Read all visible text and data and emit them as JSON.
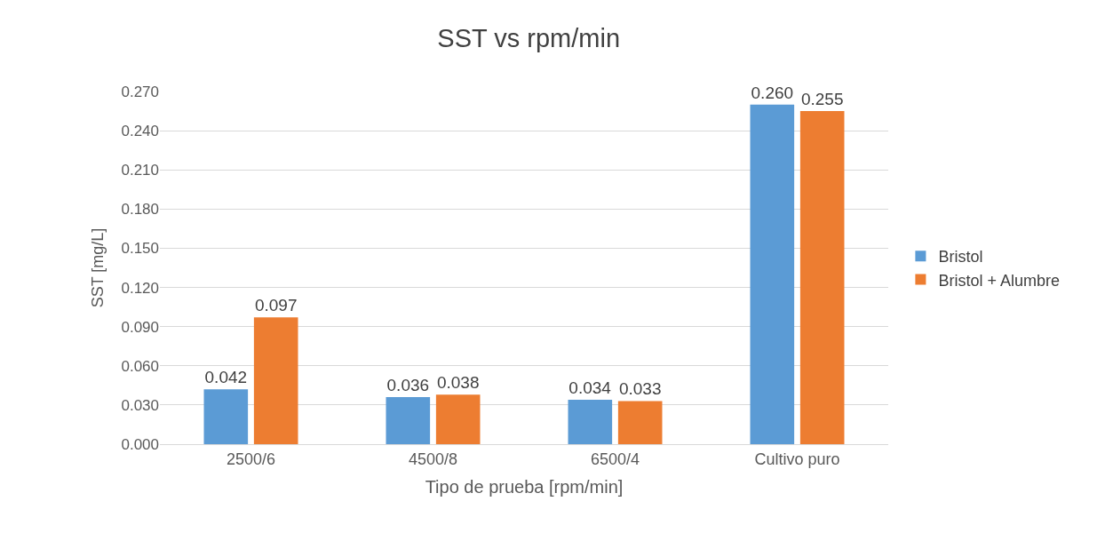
{
  "chart_data": {
    "type": "bar",
    "title": "SST vs rpm/min",
    "xlabel": "Tipo de prueba [rpm/min]",
    "ylabel": "SST [mg/L]",
    "categories": [
      "2500/6",
      "4500/8",
      "6500/4",
      "Cultivo puro"
    ],
    "series": [
      {
        "name": "Bristol",
        "color": "#5b9bd5",
        "values": [
          0.042,
          0.036,
          0.034,
          0.26
        ],
        "value_labels": [
          "0.042",
          "0.036",
          "0.034",
          "0.260"
        ]
      },
      {
        "name": "Bristol + Alumbre",
        "color": "#ed7d31",
        "values": [
          0.097,
          0.038,
          0.033,
          0.255
        ],
        "value_labels": [
          "0.097",
          "0.038",
          "0.033",
          "0.255"
        ]
      }
    ],
    "ylim": [
      0,
      0.27
    ],
    "yticks": [
      {
        "value": 0,
        "label": "0.000"
      },
      {
        "value": 0.03,
        "label": "0.030"
      },
      {
        "value": 0.06,
        "label": "0.060"
      },
      {
        "value": 0.09,
        "label": "0.090"
      },
      {
        "value": 0.12,
        "label": "0.120"
      },
      {
        "value": 0.15,
        "label": "0.150"
      },
      {
        "value": 0.18,
        "label": "0.180"
      },
      {
        "value": 0.21,
        "label": "0.210"
      },
      {
        "value": 0.24,
        "label": "0.240"
      },
      {
        "value": 0.27,
        "label": "0.270"
      }
    ],
    "grid": "y",
    "legend": "right"
  }
}
